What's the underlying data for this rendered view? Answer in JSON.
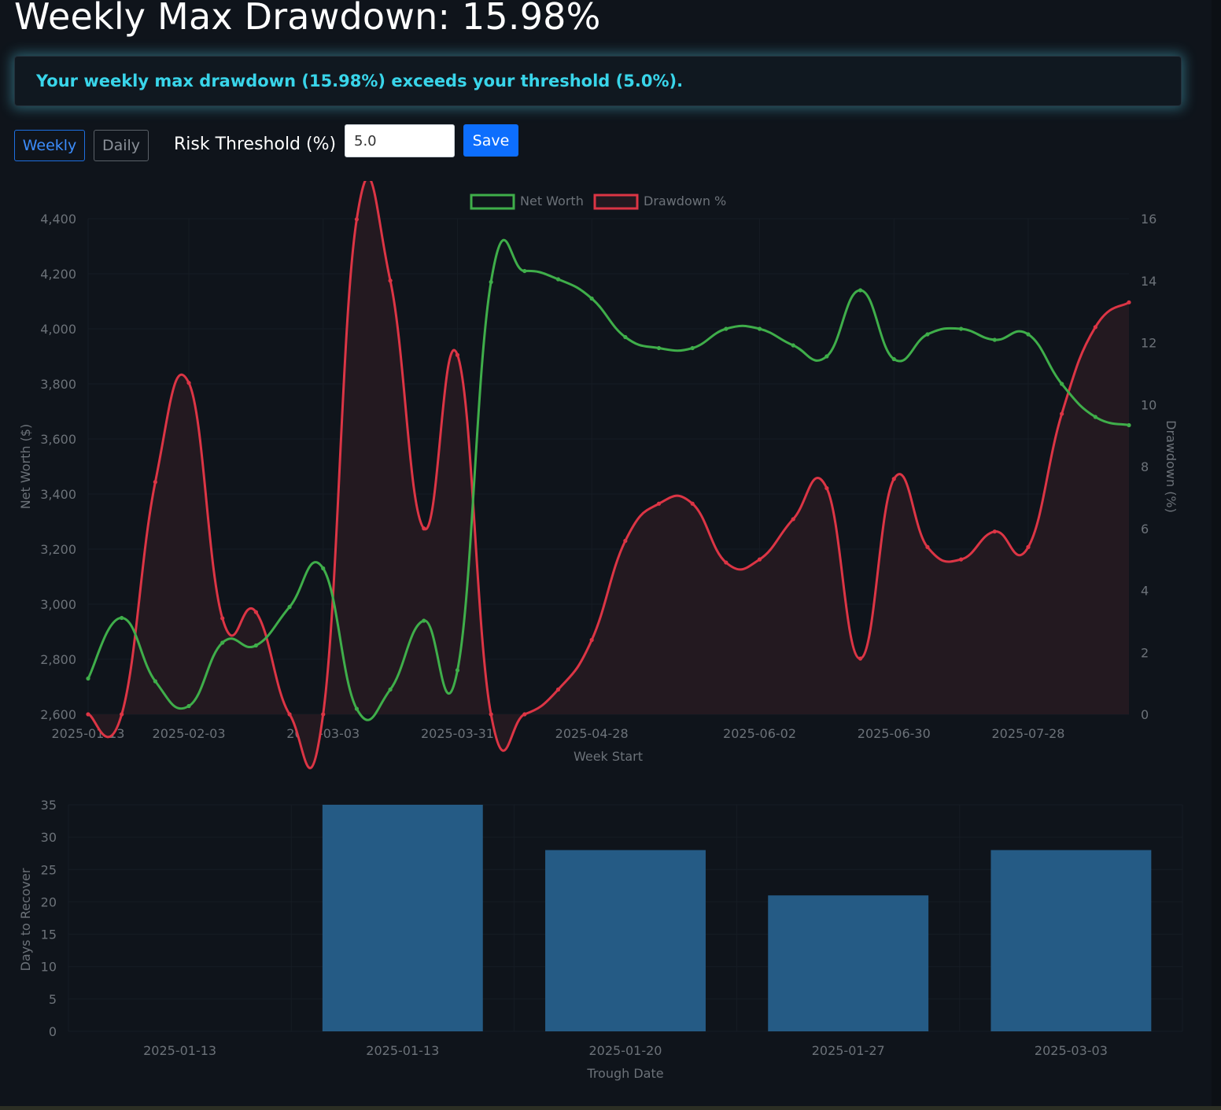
{
  "header": {
    "title": "Weekly Max Drawdown: 15.98%",
    "alert": "Your weekly max drawdown (15.98%) exceeds your threshold (5.0%)."
  },
  "controls": {
    "weekly_label": "Weekly",
    "daily_label": "Daily",
    "threshold_label": "Risk Threshold (%)",
    "threshold_value": "5.0",
    "save_label": "Save"
  },
  "colors": {
    "net_worth": "#3fae4a",
    "drawdown": "#dc3545",
    "drawdown_fill": "#231920",
    "bar": "#255b85",
    "alert_text": "#39d5ea",
    "accent": "#0d6efd"
  },
  "chart_data": [
    {
      "type": "line",
      "x": [
        "2025-01-13",
        "2025-01-20",
        "2025-01-27",
        "2025-02-03",
        "2025-02-10",
        "2025-02-17",
        "2025-02-24",
        "2025-03-03",
        "2025-03-10",
        "2025-03-17",
        "2025-03-24",
        "2025-03-31",
        "2025-04-07",
        "2025-04-14",
        "2025-04-21",
        "2025-04-28",
        "2025-05-05",
        "2025-05-12",
        "2025-05-19",
        "2025-05-26",
        "2025-06-02",
        "2025-06-09",
        "2025-06-16",
        "2025-06-23",
        "2025-06-30",
        "2025-07-07",
        "2025-07-14",
        "2025-07-21",
        "2025-07-28",
        "2025-08-04",
        "2025-08-11",
        "2025-08-18"
      ],
      "x_tick_labels": [
        "2025-01-13",
        "2025-02-03",
        "2025-03-03",
        "2025-03-31",
        "2025-04-28",
        "2025-06-02",
        "2025-06-30",
        "2025-07-28"
      ],
      "legend": [
        "Net Worth",
        "Drawdown %"
      ],
      "legend_position": "top",
      "series": [
        {
          "name": "Net Worth",
          "axis": "left",
          "values": [
            2730,
            2950,
            2720,
            2630,
            2860,
            2850,
            2990,
            3130,
            2620,
            2690,
            2940,
            2760,
            4170,
            4210,
            4180,
            4110,
            3970,
            3930,
            3930,
            4000,
            4000,
            3940,
            3900,
            4140,
            3890,
            3980,
            4000,
            3960,
            3980,
            3800,
            3680,
            3650
          ]
        },
        {
          "name": "Drawdown %",
          "axis": "right",
          "fill": true,
          "values": [
            0,
            0,
            7.5,
            10.7,
            3.1,
            3.3,
            0,
            0,
            15.98,
            14.0,
            6.0,
            11.6,
            0,
            0,
            0.8,
            2.4,
            5.6,
            6.8,
            6.8,
            4.9,
            5.0,
            6.3,
            7.3,
            1.8,
            7.6,
            5.4,
            5.0,
            5.9,
            5.4,
            9.7,
            12.5,
            13.3
          ]
        }
      ],
      "xlabel": "Week Start",
      "ylabel_left": "Net Worth ($)",
      "ylabel_right": "Drawdown (%)",
      "ylim_left": [
        2600,
        4400
      ],
      "ylim_right": [
        0,
        16
      ],
      "yticks_left": [
        "2,600",
        "2,800",
        "3,000",
        "3,200",
        "3,400",
        "3,600",
        "3,800",
        "4,000",
        "4,200",
        "4,400"
      ],
      "yticks_right": [
        "0",
        "2",
        "4",
        "6",
        "8",
        "10",
        "12",
        "14",
        "16"
      ],
      "grid": true
    },
    {
      "type": "bar",
      "categories": [
        "2025-01-13",
        "2025-01-13",
        "2025-01-20",
        "2025-01-27",
        "2025-03-03"
      ],
      "values": [
        0,
        35,
        28,
        21,
        28
      ],
      "xlabel": "Trough Date",
      "ylabel": "Days to Recover",
      "ylim": [
        0,
        35
      ],
      "yticks": [
        "0",
        "5",
        "10",
        "15",
        "20",
        "25",
        "30",
        "35"
      ],
      "grid": true
    }
  ]
}
